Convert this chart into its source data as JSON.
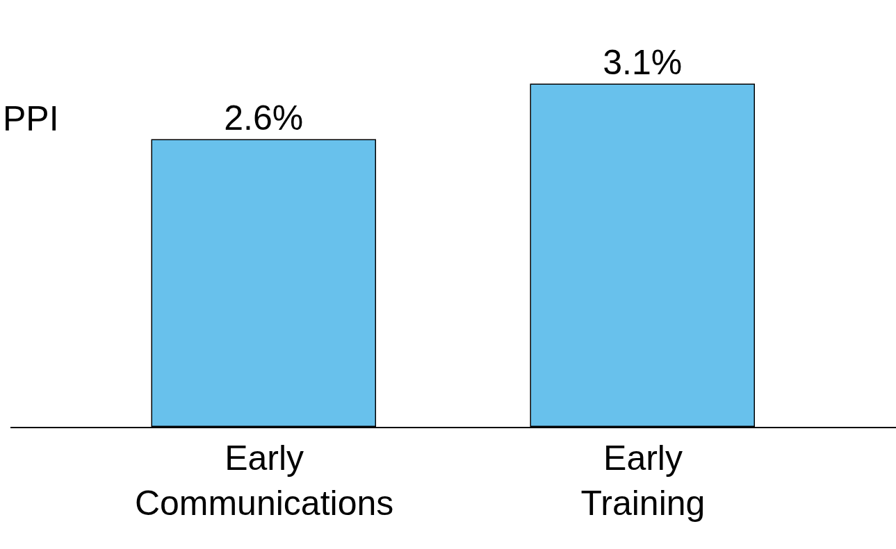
{
  "chart_data": {
    "type": "bar",
    "ylabel": "PPI",
    "categories": [
      "Early Communications",
      "Early Training"
    ],
    "values": [
      2.6,
      3.1
    ],
    "value_labels": [
      "2.6%",
      "3.1%"
    ],
    "color": "#68c1ec",
    "ylim": [
      0,
      3.87
    ],
    "tick_labels": "x"
  }
}
